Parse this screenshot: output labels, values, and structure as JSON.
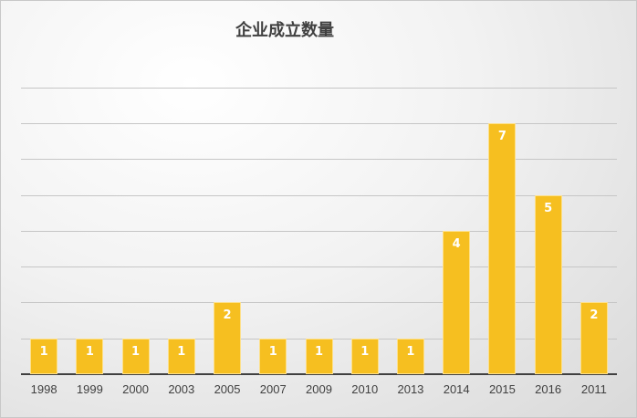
{
  "chart_data": {
    "type": "bar",
    "title": "企业成立数量",
    "categories": [
      "1998",
      "1999",
      "2000",
      "2003",
      "2005",
      "2007",
      "2009",
      "2010",
      "2013",
      "2014",
      "2015",
      "2016",
      "2011"
    ],
    "values": [
      1,
      1,
      1,
      1,
      2,
      1,
      1,
      1,
      1,
      4,
      7,
      5,
      2
    ],
    "xlabel": "",
    "ylabel": "",
    "ylim": [
      0,
      8
    ],
    "grid": true,
    "legend": "none",
    "data_labels": true,
    "bar_color": "#f6bf20"
  }
}
